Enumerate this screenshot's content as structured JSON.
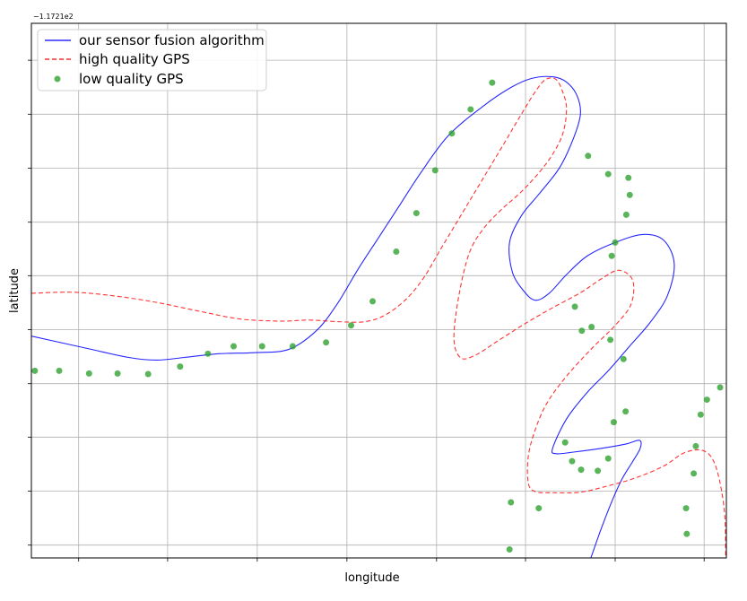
{
  "chart_data": {
    "type": "line",
    "title": "",
    "xlabel": "longitude",
    "ylabel": "latitude",
    "y_offset_label": "−1.1721e2",
    "xlim": [
      0,
      100
    ],
    "ylim": [
      0,
      100
    ],
    "grid": true,
    "legend_placement": "top-left",
    "x_ticks": [
      6.8,
      19.6,
      32.5,
      45.4,
      58.3,
      71.1,
      84.0,
      96.8
    ],
    "y_ticks": [
      2.4,
      12.5,
      22.6,
      32.6,
      42.7,
      52.8,
      62.8,
      72.9,
      83.0,
      93.1
    ],
    "series": [
      {
        "name": "our sensor fusion algorithm",
        "style": "solid",
        "color": "#0000ff",
        "points": [
          [
            0,
            41.5
          ],
          [
            8,
            39.2
          ],
          [
            14,
            37.5
          ],
          [
            18,
            37.0
          ],
          [
            22,
            37.5
          ],
          [
            27,
            38.2
          ],
          [
            32,
            38.4
          ],
          [
            37,
            39.0
          ],
          [
            41,
            42.5
          ],
          [
            44,
            47.5
          ],
          [
            47,
            54
          ],
          [
            50,
            60
          ],
          [
            53,
            66
          ],
          [
            56,
            72
          ],
          [
            60,
            79
          ],
          [
            65,
            84.5
          ],
          [
            69,
            88
          ],
          [
            72,
            89.7
          ],
          [
            75,
            90
          ],
          [
            77,
            89
          ],
          [
            78.5,
            86.5
          ],
          [
            79,
            83
          ],
          [
            78,
            78.5
          ],
          [
            76,
            73
          ],
          [
            73,
            68
          ],
          [
            70.5,
            64
          ],
          [
            68.8,
            59
          ],
          [
            69.2,
            53.5
          ],
          [
            70.8,
            50
          ],
          [
            72.5,
            48.2
          ],
          [
            74.5,
            49.5
          ],
          [
            77,
            53
          ],
          [
            80,
            56.5
          ],
          [
            84,
            59
          ],
          [
            88,
            60.5
          ],
          [
            91,
            59.4
          ],
          [
            92.5,
            55
          ],
          [
            91.5,
            49
          ],
          [
            89,
            44
          ],
          [
            86,
            39.5
          ],
          [
            83,
            35
          ],
          [
            80,
            31
          ],
          [
            77,
            26
          ],
          [
            75,
            20.5
          ],
          [
            75.5,
            19.5
          ],
          [
            78,
            19.8
          ],
          [
            82,
            20.5
          ],
          [
            85.5,
            21.3
          ],
          [
            87.5,
            22
          ],
          [
            87.6,
            20.5
          ],
          [
            86.5,
            18
          ],
          [
            85,
            14.8
          ],
          [
            83.5,
            10.5
          ],
          [
            82,
            5.5
          ],
          [
            80.5,
            0
          ]
        ]
      },
      {
        "name": "high quality GPS",
        "style": "dashed",
        "color": "#ff0000",
        "points": [
          [
            0,
            49.5
          ],
          [
            6,
            49.7
          ],
          [
            12,
            49
          ],
          [
            18,
            47.8
          ],
          [
            24,
            46.2
          ],
          [
            30,
            44.7
          ],
          [
            36,
            44.3
          ],
          [
            40,
            44.5
          ],
          [
            44,
            44.2
          ],
          [
            48,
            44.2
          ],
          [
            51,
            45.5
          ],
          [
            54,
            48.5
          ],
          [
            56.5,
            52.5
          ],
          [
            59,
            58
          ],
          [
            62,
            64.5
          ],
          [
            65,
            71
          ],
          [
            68,
            77.5
          ],
          [
            70.5,
            83
          ],
          [
            72.5,
            87.2
          ],
          [
            74,
            89.5
          ],
          [
            75.5,
            89.5
          ],
          [
            76.5,
            87
          ],
          [
            77,
            84
          ],
          [
            76.5,
            79.5
          ],
          [
            75,
            75.5
          ],
          [
            73,
            72
          ],
          [
            70.5,
            68.5
          ],
          [
            67.5,
            65
          ],
          [
            65,
            61.5
          ],
          [
            63,
            57
          ],
          [
            61.5,
            49
          ],
          [
            60.8,
            41
          ],
          [
            61.8,
            37.4
          ],
          [
            64,
            38
          ],
          [
            67,
            40.5
          ],
          [
            71,
            43.8
          ],
          [
            75,
            46.8
          ],
          [
            79,
            49.6
          ],
          [
            82,
            52.2
          ],
          [
            84.5,
            53.8
          ],
          [
            86.5,
            52
          ],
          [
            86.3,
            47.5
          ],
          [
            84,
            43.5
          ],
          [
            80.5,
            39
          ],
          [
            77,
            34
          ],
          [
            74.2,
            29
          ],
          [
            72.5,
            24
          ],
          [
            71.5,
            19
          ],
          [
            71.5,
            14
          ],
          [
            72.5,
            12.4
          ],
          [
            75,
            12.2
          ],
          [
            79,
            12.3
          ],
          [
            83,
            13.5
          ],
          [
            87,
            15
          ],
          [
            91,
            17.2
          ],
          [
            94,
            19.7
          ],
          [
            96.8,
            20
          ],
          [
            98.5,
            17
          ],
          [
            99.7,
            9
          ],
          [
            99.9,
            0
          ]
        ]
      },
      {
        "name": "low quality GPS",
        "type": "scatter",
        "color": "#2ca02c",
        "points": [
          [
            0.5,
            35
          ],
          [
            4,
            35
          ],
          [
            8.3,
            34.5
          ],
          [
            12.4,
            34.5
          ],
          [
            16.8,
            34.4
          ],
          [
            21.4,
            35.8
          ],
          [
            25.4,
            38.2
          ],
          [
            29.1,
            39.6
          ],
          [
            33.2,
            39.6
          ],
          [
            37.6,
            39.6
          ],
          [
            42.4,
            40.3
          ],
          [
            46,
            43.5
          ],
          [
            49.1,
            48
          ],
          [
            52.5,
            57.3
          ],
          [
            55.4,
            64.5
          ],
          [
            58.1,
            72.5
          ],
          [
            60.5,
            79.4
          ],
          [
            63.2,
            83.9
          ],
          [
            66.3,
            88.9
          ],
          [
            69,
            10.4
          ],
          [
            73,
            9.3
          ],
          [
            68.8,
            1.6
          ],
          [
            78.2,
            47
          ],
          [
            79.2,
            42.5
          ],
          [
            80.6,
            43.2
          ],
          [
            83.3,
            40.8
          ],
          [
            85.2,
            37.2
          ],
          [
            76.8,
            21.6
          ],
          [
            77.8,
            18.1
          ],
          [
            79.1,
            16.5
          ],
          [
            81.5,
            16.3
          ],
          [
            83,
            18.6
          ],
          [
            83.8,
            25.4
          ],
          [
            85.5,
            27.4
          ],
          [
            83.5,
            56.5
          ],
          [
            84,
            59
          ],
          [
            85.6,
            64.2
          ],
          [
            86.1,
            67.9
          ],
          [
            85.9,
            71.1
          ],
          [
            83,
            71.8
          ],
          [
            80.1,
            75.2
          ],
          [
            94.3,
            4.5
          ],
          [
            94.2,
            9.3
          ],
          [
            95.3,
            15.8
          ],
          [
            95.6,
            20.9
          ],
          [
            96.3,
            26.8
          ],
          [
            97.2,
            29.6
          ],
          [
            99.1,
            31.9
          ],
          [
            101.6,
            34
          ]
        ]
      }
    ]
  }
}
